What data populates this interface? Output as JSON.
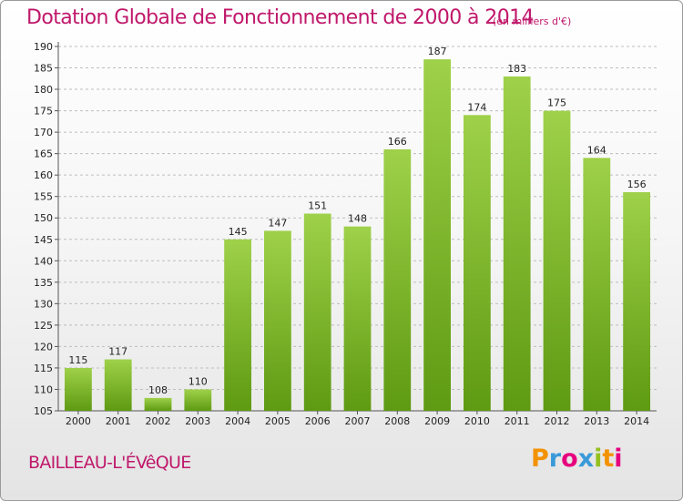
{
  "header": {
    "title": "Dotation Globale de Fonctionnement de 2000 à 2014",
    "subtitle": "(en milliers d'€)"
  },
  "footer": {
    "city": "BAILLEAU-L'ÉVêQUE",
    "logo": {
      "letters": [
        "P",
        "r",
        "o",
        "x",
        "i",
        "t",
        "i"
      ],
      "colors": [
        "#f39200",
        "#3a9ad9",
        "#e6007e",
        "#3a9ad9",
        "#95c11f",
        "#f39200",
        "#e6007e"
      ]
    }
  },
  "colors": {
    "bar_top": "#9fd14a",
    "bar_bottom": "#5e9a12",
    "title": "#c0186b"
  },
  "chart_data": {
    "type": "bar",
    "title": "Dotation Globale de Fonctionnement de 2000 à 2014",
    "xlabel": "",
    "ylabel": "",
    "categories": [
      "2000",
      "2001",
      "2002",
      "2003",
      "2004",
      "2005",
      "2006",
      "2007",
      "2008",
      "2009",
      "2010",
      "2011",
      "2012",
      "2013",
      "2014"
    ],
    "values": [
      115,
      117,
      108,
      110,
      145,
      147,
      151,
      148,
      166,
      187,
      174,
      183,
      175,
      164,
      156
    ],
    "ylim": [
      105,
      190
    ],
    "yticks": [
      105,
      110,
      115,
      120,
      125,
      130,
      135,
      140,
      145,
      150,
      155,
      160,
      165,
      170,
      175,
      180,
      185,
      190
    ],
    "grid": true
  }
}
